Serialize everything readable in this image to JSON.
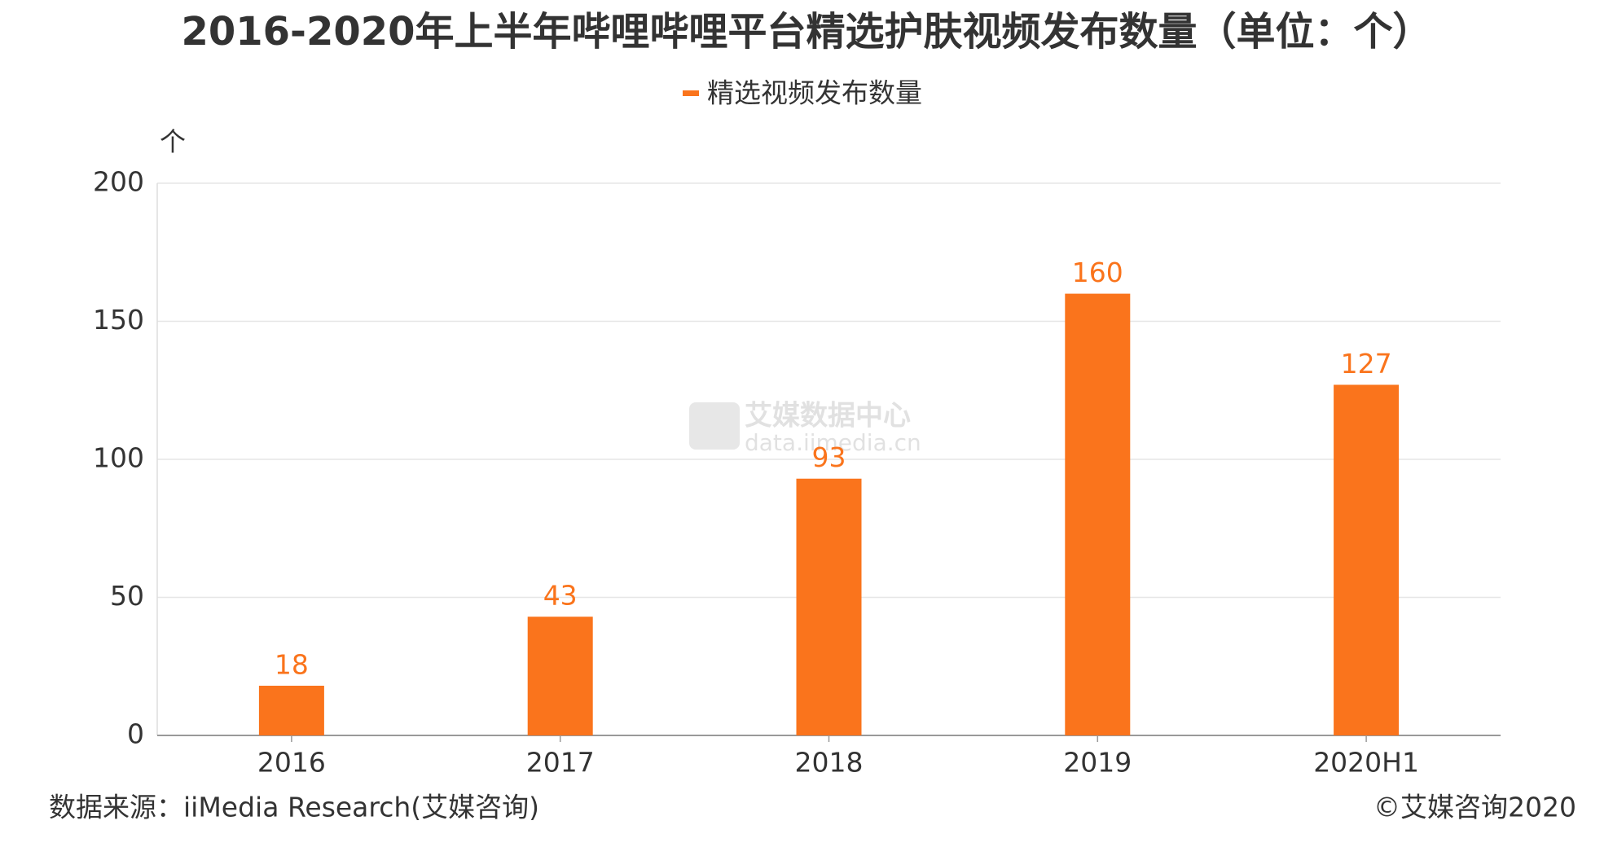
{
  "chart_data": {
    "type": "bar",
    "title": "2016-2020年上半年哔哩哔哩平台精选护肤视频发布数量（单位：个）",
    "y_unit_label": "个",
    "categories": [
      "2016",
      "2017",
      "2018",
      "2019",
      "2020H1"
    ],
    "series": [
      {
        "name": "精选视频发布数量",
        "color": "#fa741c",
        "values": [
          18,
          43,
          93,
          160,
          127
        ]
      }
    ],
    "ylim": [
      0,
      200
    ],
    "yticks": [
      0,
      50,
      100,
      150,
      200
    ],
    "grid": true,
    "legend": "top",
    "watermark": {
      "name": "艾媒数据中心",
      "url": "data.iimedia.cn"
    },
    "source": "数据来源：iiMedia Research(艾媒咨询)",
    "copyright": "©艾媒咨询2020"
  }
}
